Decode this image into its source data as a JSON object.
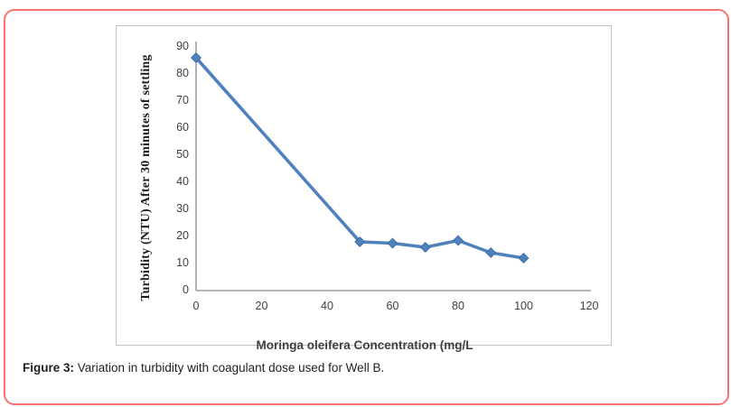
{
  "figure": {
    "caption_label": "Figure 3:",
    "caption_text": " Variation in turbidity with coagulant dose used for Well B."
  },
  "chart_data": {
    "type": "line",
    "title": "",
    "xlabel": "Moringa oleifera Concentration (mg/L",
    "ylabel": "Turbidity (NTU) After 30 minutes of settling",
    "x": [
      0,
      50,
      60,
      70,
      80,
      90,
      100
    ],
    "y": [
      86,
      18,
      17.5,
      16,
      18.5,
      14,
      12
    ],
    "xlim": [
      0,
      120
    ],
    "ylim": [
      0,
      90
    ],
    "xticks": [
      0,
      20,
      40,
      60,
      80,
      100,
      120
    ],
    "yticks": [
      0,
      10,
      20,
      30,
      40,
      50,
      60,
      70,
      80,
      90
    ],
    "grid": false,
    "legend_position": "none",
    "marker": "diamond",
    "line_color": "#4f81bd",
    "marker_color": "#4f81bd",
    "marker_edge_color": "#3d6da8",
    "axis_color": "#8a8a8a"
  },
  "colors": {
    "frame_red": "#f87171",
    "panel_border": "#c2c2c2",
    "tick_text": "#3f3f3f"
  }
}
